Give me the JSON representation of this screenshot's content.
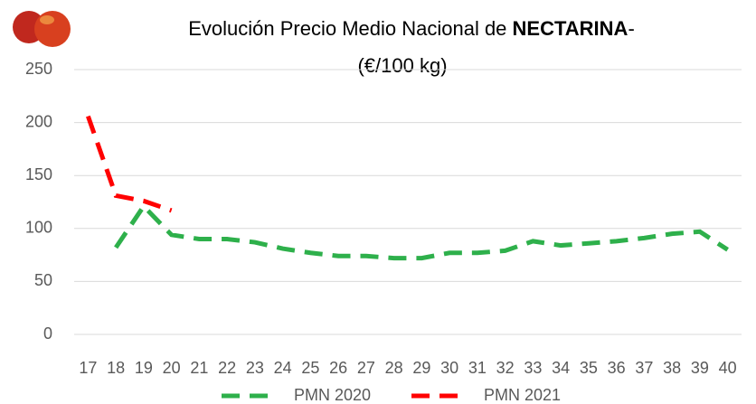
{
  "chart_data": {
    "type": "line",
    "title": [
      "Evolución Precio Medio Nacional de ",
      "NECTARINA",
      "-"
    ],
    "subtitle": "(€/100 kg)",
    "categories": [
      "17",
      "18",
      "19",
      "20",
      "21",
      "22",
      "23",
      "24",
      "25",
      "26",
      "27",
      "28",
      "29",
      "30",
      "31",
      "32",
      "33",
      "34",
      "35",
      "36",
      "37",
      "38",
      "39",
      "40"
    ],
    "series": [
      {
        "name": "PMN 2020",
        "color": "#2eb04b",
        "values": [
          null,
          82,
          121,
          94,
          90,
          90,
          87,
          81,
          77,
          74,
          74,
          72,
          72,
          77,
          77,
          79,
          88,
          84,
          86,
          88,
          91,
          95,
          97,
          80
        ]
      },
      {
        "name": "PMN 2021",
        "color": "#ff0000",
        "values": [
          206,
          131,
          126,
          117,
          null,
          null,
          null,
          null,
          null,
          null,
          null,
          null,
          null,
          null,
          null,
          null,
          null,
          null,
          null,
          null,
          null,
          null,
          null,
          null
        ]
      }
    ],
    "ylim": [
      0,
      250
    ],
    "yticks": [
      0,
      50,
      100,
      150,
      200,
      250
    ],
    "grid": true,
    "legend": "bottom"
  }
}
